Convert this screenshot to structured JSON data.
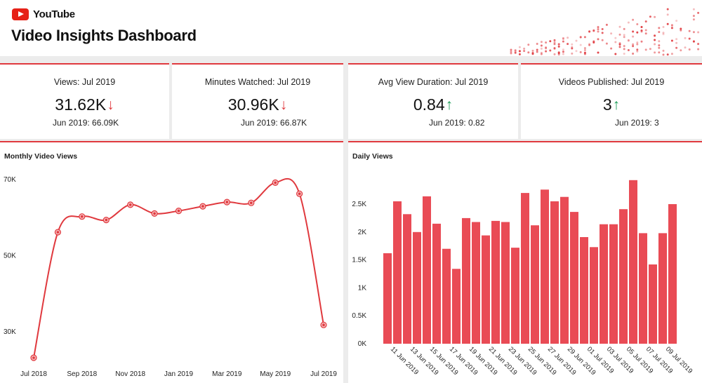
{
  "header": {
    "brand": "YouTube",
    "title": "Video Insights Dashboard",
    "brand_color": "#e62117",
    "accent_color": "#e0393e"
  },
  "kpis": [
    {
      "label": "Views: Jul 2019",
      "value": "31.62K",
      "trend": "down",
      "arrow": "↓",
      "previous": "Jun 2019: 66.09K"
    },
    {
      "label": "Minutes Watched: Jul 2019",
      "value": "30.96K",
      "trend": "down",
      "arrow": "↓",
      "previous": "Jun 2019: 66.87K"
    },
    {
      "label": "Avg View Duration: Jul 2019",
      "value": "0.84",
      "trend": "up",
      "arrow": "↑",
      "previous": "Jun 2019: 0.82"
    },
    {
      "label": "Videos Published: Jul 2019",
      "value": "3",
      "trend": "up",
      "arrow": "↑",
      "previous": "Jun 2019: 3"
    }
  ],
  "chart_data": [
    {
      "type": "line",
      "title": "Monthly Video Views",
      "x": [
        "Jul 2018",
        "Aug 2018",
        "Sep 2018",
        "Oct 2018",
        "Nov 2018",
        "Dec 2018",
        "Jan 2019",
        "Feb 2019",
        "Mar 2019",
        "Apr 2019",
        "May 2019",
        "Jun 2019",
        "Jul 2019"
      ],
      "x_tick_labels": [
        "Jul 2018",
        "Sep 2018",
        "Nov 2018",
        "Jan 2019",
        "Mar 2019",
        "May 2019",
        "Jul 2019"
      ],
      "values": [
        23000,
        56000,
        60100,
        59200,
        63200,
        60900,
        61600,
        62800,
        63900,
        63700,
        69000,
        66090,
        31620
      ],
      "y_ticks": [
        30000,
        50000,
        70000
      ],
      "y_tick_labels": [
        "30K",
        "50K",
        "70K"
      ],
      "ylim": [
        23000,
        70000
      ],
      "color": "#e0393e",
      "grid": false
    },
    {
      "type": "bar",
      "title": "Daily Views",
      "categories": [
        "11 Jun 2019",
        "12 Jun 2019",
        "13 Jun 2019",
        "14 Jun 2019",
        "15 Jun 2019",
        "16 Jun 2019",
        "17 Jun 2019",
        "18 Jun 2019",
        "19 Jun 2019",
        "20 Jun 2019",
        "21 Jun 2019",
        "22 Jun 2019",
        "23 Jun 2019",
        "24 Jun 2019",
        "25 Jun 2019",
        "26 Jun 2019",
        "27 Jun 2019",
        "28 Jun 2019",
        "29 Jun 2019",
        "30 Jun 2019",
        "01 Jul 2019",
        "02 Jul 2019",
        "03 Jul 2019",
        "04 Jul 2019",
        "05 Jul 2019",
        "06 Jul 2019",
        "07 Jul 2019",
        "08 Jul 2019",
        "09 Jul 2019",
        "10 Jul 2019"
      ],
      "tick_labels": [
        "11 Jun 2019",
        "13 Jun 2019",
        "15 Jun 2019",
        "17 Jun 2019",
        "19 Jun 2019",
        "21 Jun 2019",
        "23 Jun 2019",
        "25 Jun 2019",
        "27 Jun 2019",
        "29 Jun 2019",
        "01 Jul 2019",
        "03 Jul 2019",
        "05 Jul 2019",
        "07 Jul 2019",
        "09 Jul 2019"
      ],
      "values": [
        1620,
        2550,
        2320,
        2000,
        2640,
        2150,
        1700,
        1340,
        2250,
        2180,
        1940,
        2200,
        2180,
        1720,
        2700,
        2120,
        2760,
        2550,
        2630,
        2360,
        1910,
        1730,
        2140,
        2140,
        2410,
        2930,
        1980,
        1420,
        1980,
        2500
      ],
      "y_ticks": [
        0,
        500,
        1000,
        1500,
        2000,
        2500
      ],
      "y_tick_labels": [
        "0K",
        "0.5K",
        "1K",
        "1.5K",
        "2K",
        "2.5K"
      ],
      "ylim": [
        0,
        3000
      ],
      "color": "#e94b55",
      "grid": false
    }
  ]
}
